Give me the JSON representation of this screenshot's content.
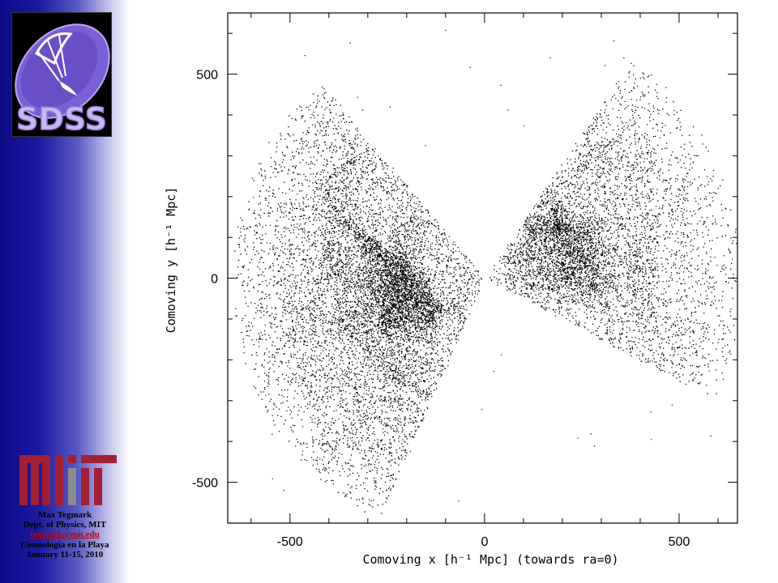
{
  "sidebar": {
    "sdss_logo_text": "SDSS",
    "mit_logo_text": "MIT",
    "credits": {
      "name": "Max Tegmark",
      "affiliation": "Dept. of Physics, MIT",
      "email": "tegmark@mit.edu",
      "event": "Cosmologia en la Playa",
      "dates": "January 11-15, 2010"
    }
  },
  "colors": {
    "sidebar_dark": "#0a0a88",
    "mit_red": "#a31f34",
    "mit_gray": "#8a8b8c",
    "email_link": "#c00000",
    "points": "#000000"
  },
  "chart_data": {
    "type": "scatter",
    "description_title": "",
    "xlabel": "Comoving x [h⁻¹ Mpc] (towards ra=0)",
    "ylabel": "Comoving y [h⁻¹ Mpc]",
    "xlim": [
      -660,
      650
    ],
    "ylim": [
      -600,
      650
    ],
    "xticks": [
      {
        "value": -500,
        "label": "-500"
      },
      {
        "value": 0,
        "label": "0"
      },
      {
        "value": 500,
        "label": "500"
      }
    ],
    "yticks": [
      {
        "value": -500,
        "label": "-500"
      },
      {
        "value": 0,
        "label": "0"
      },
      {
        "value": 500,
        "label": "500"
      }
    ],
    "grid": false,
    "series": [
      {
        "wedge": "left",
        "apex": [
          0,
          0
        ],
        "upper_edge_point": [
          -400,
          460
        ],
        "lower_edge_point": [
          -300,
          -650
        ],
        "max_radius": 650,
        "point_count": 9000,
        "dense_cluster_center": [
          -230,
          -40
        ]
      },
      {
        "wedge": "right",
        "apex": [
          0,
          0
        ],
        "upper_edge_point": [
          380,
          540
        ],
        "lower_edge_point": [
          650,
          -330
        ],
        "max_radius": 660,
        "point_count": 5500,
        "dense_cluster_center": [
          230,
          60
        ]
      }
    ]
  }
}
